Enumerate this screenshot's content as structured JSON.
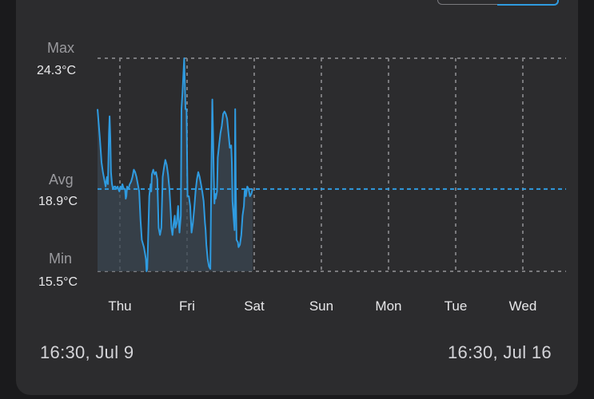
{
  "header": {
    "selector_options": [
      "",
      ""
    ]
  },
  "chart_data": {
    "type": "line",
    "unit": "°C",
    "stats": {
      "max": {
        "label": "Max",
        "value": 24.3,
        "text": "24.3°C"
      },
      "avg": {
        "label": "Avg",
        "value": 18.9,
        "text": "18.9°C"
      },
      "min": {
        "label": "Min",
        "value": 15.5,
        "text": "15.5°C"
      }
    },
    "x_ticks": [
      "Thu",
      "Fri",
      "Sat",
      "Sun",
      "Mon",
      "Tue",
      "Wed"
    ],
    "x_range_days": [
      0,
      7
    ],
    "time_span": {
      "start": "16:30,  Jul 9",
      "end": "16:30,  Jul 16"
    },
    "highlight_threshold": 22.5,
    "colors": {
      "line": "#2f9be0",
      "fill": "#3a4652",
      "highlight": "#e53935",
      "grid": "#7b7b7e",
      "avg_line": "#2f9be0"
    },
    "series": [
      {
        "values": [
          [
            0.0,
            22.2
          ],
          [
            0.035,
            21.0
          ],
          [
            0.06,
            20.0
          ],
          [
            0.08,
            19.6
          ],
          [
            0.1,
            19.3
          ],
          [
            0.12,
            19.0
          ],
          [
            0.14,
            19.4
          ],
          [
            0.155,
            19.1
          ],
          [
            0.17,
            21.2
          ],
          [
            0.18,
            21.9
          ],
          [
            0.19,
            21.0
          ],
          [
            0.2,
            19.6
          ],
          [
            0.215,
            19.1
          ],
          [
            0.23,
            18.9
          ],
          [
            0.25,
            19.0
          ],
          [
            0.265,
            19.0
          ],
          [
            0.28,
            18.9
          ],
          [
            0.3,
            19.0
          ],
          [
            0.31,
            18.9
          ],
          [
            0.325,
            18.8
          ],
          [
            0.34,
            19.0
          ],
          [
            0.355,
            18.9
          ],
          [
            0.37,
            19.1
          ],
          [
            0.39,
            18.9
          ],
          [
            0.41,
            18.9
          ],
          [
            0.42,
            18.5
          ],
          [
            0.43,
            18.6
          ],
          [
            0.44,
            19.0
          ],
          [
            0.46,
            18.9
          ],
          [
            0.47,
            19.0
          ],
          [
            0.48,
            19.1
          ],
          [
            0.5,
            19.2
          ],
          [
            0.52,
            19.4
          ],
          [
            0.54,
            19.7
          ],
          [
            0.56,
            19.6
          ],
          [
            0.58,
            19.4
          ],
          [
            0.6,
            19.1
          ],
          [
            0.62,
            18.8
          ],
          [
            0.64,
            17.6
          ],
          [
            0.66,
            16.8
          ],
          [
            0.69,
            16.5
          ],
          [
            0.71,
            16.2
          ],
          [
            0.72,
            16.0
          ],
          [
            0.73,
            15.5
          ],
          [
            0.74,
            15.6
          ],
          [
            0.75,
            16.5
          ],
          [
            0.77,
            18.6
          ],
          [
            0.79,
            19.1
          ],
          [
            0.8,
            18.8
          ],
          [
            0.81,
            19.5
          ],
          [
            0.83,
            19.7
          ],
          [
            0.85,
            19.5
          ],
          [
            0.87,
            19.6
          ],
          [
            0.89,
            19.3
          ],
          [
            0.91,
            17.3
          ],
          [
            0.93,
            17.0
          ],
          [
            0.95,
            17.3
          ],
          [
            0.97,
            19.4
          ],
          [
            0.99,
            19.8
          ],
          [
            1.01,
            20.1
          ],
          [
            1.03,
            19.9
          ],
          [
            1.05,
            19.5
          ],
          [
            1.07,
            18.9
          ],
          [
            1.09,
            17.9
          ],
          [
            1.1,
            17.3
          ],
          [
            1.115,
            17.0
          ],
          [
            1.13,
            17.4
          ],
          [
            1.15,
            17.8
          ],
          [
            1.16,
            17.3
          ],
          [
            1.18,
            17.5
          ],
          [
            1.2,
            18.2
          ],
          [
            1.21,
            17.6
          ],
          [
            1.22,
            17.1
          ],
          [
            1.24,
            17.8
          ],
          [
            1.25,
            22.2
          ],
          [
            1.265,
            22.9
          ],
          [
            1.29,
            24.3
          ],
          [
            1.31,
            22.2
          ],
          [
            1.325,
            22.2
          ],
          [
            1.34,
            18.6
          ],
          [
            1.36,
            18.6
          ],
          [
            1.38,
            18.2
          ],
          [
            1.4,
            17.1
          ],
          [
            1.42,
            17.5
          ],
          [
            1.44,
            18.1
          ],
          [
            1.46,
            18.8
          ],
          [
            1.48,
            19.3
          ],
          [
            1.5,
            19.6
          ],
          [
            1.52,
            19.4
          ],
          [
            1.54,
            19.1
          ],
          [
            1.56,
            18.8
          ],
          [
            1.58,
            18.4
          ],
          [
            1.6,
            17.5
          ],
          [
            1.61,
            17.2
          ],
          [
            1.62,
            16.6
          ],
          [
            1.64,
            16.0
          ],
          [
            1.66,
            15.7
          ],
          [
            1.68,
            15.6
          ],
          [
            1.695,
            19.6
          ],
          [
            1.71,
            22.6
          ],
          [
            1.72,
            21.2
          ],
          [
            1.73,
            19.6
          ],
          [
            1.74,
            18.3
          ],
          [
            1.75,
            18.7
          ],
          [
            1.76,
            18.5
          ],
          [
            1.78,
            18.8
          ],
          [
            1.79,
            20.2
          ],
          [
            1.81,
            20.7
          ],
          [
            1.83,
            21.2
          ],
          [
            1.85,
            21.5
          ],
          [
            1.87,
            22.0
          ],
          [
            1.89,
            22.1
          ],
          [
            1.91,
            22.0
          ],
          [
            1.93,
            21.8
          ],
          [
            1.95,
            21.2
          ],
          [
            1.97,
            20.6
          ],
          [
            1.99,
            20.7
          ],
          [
            2.0,
            20.0
          ],
          [
            2.01,
            18.4
          ],
          [
            2.03,
            17.6
          ],
          [
            2.04,
            17.2
          ],
          [
            2.05,
            22.2
          ],
          [
            2.06,
            18.8
          ],
          [
            2.07,
            16.8
          ],
          [
            2.09,
            16.7
          ],
          [
            2.1,
            16.5
          ],
          [
            2.12,
            16.6
          ],
          [
            2.14,
            17.0
          ],
          [
            2.16,
            17.8
          ],
          [
            2.18,
            18.2
          ],
          [
            2.19,
            18.8
          ],
          [
            2.2,
            18.9
          ],
          [
            2.21,
            18.6
          ],
          [
            2.23,
            19.0
          ],
          [
            2.25,
            18.9
          ],
          [
            2.27,
            18.6
          ],
          [
            2.29,
            18.7
          ],
          [
            2.31,
            18.9
          ]
        ]
      }
    ]
  }
}
